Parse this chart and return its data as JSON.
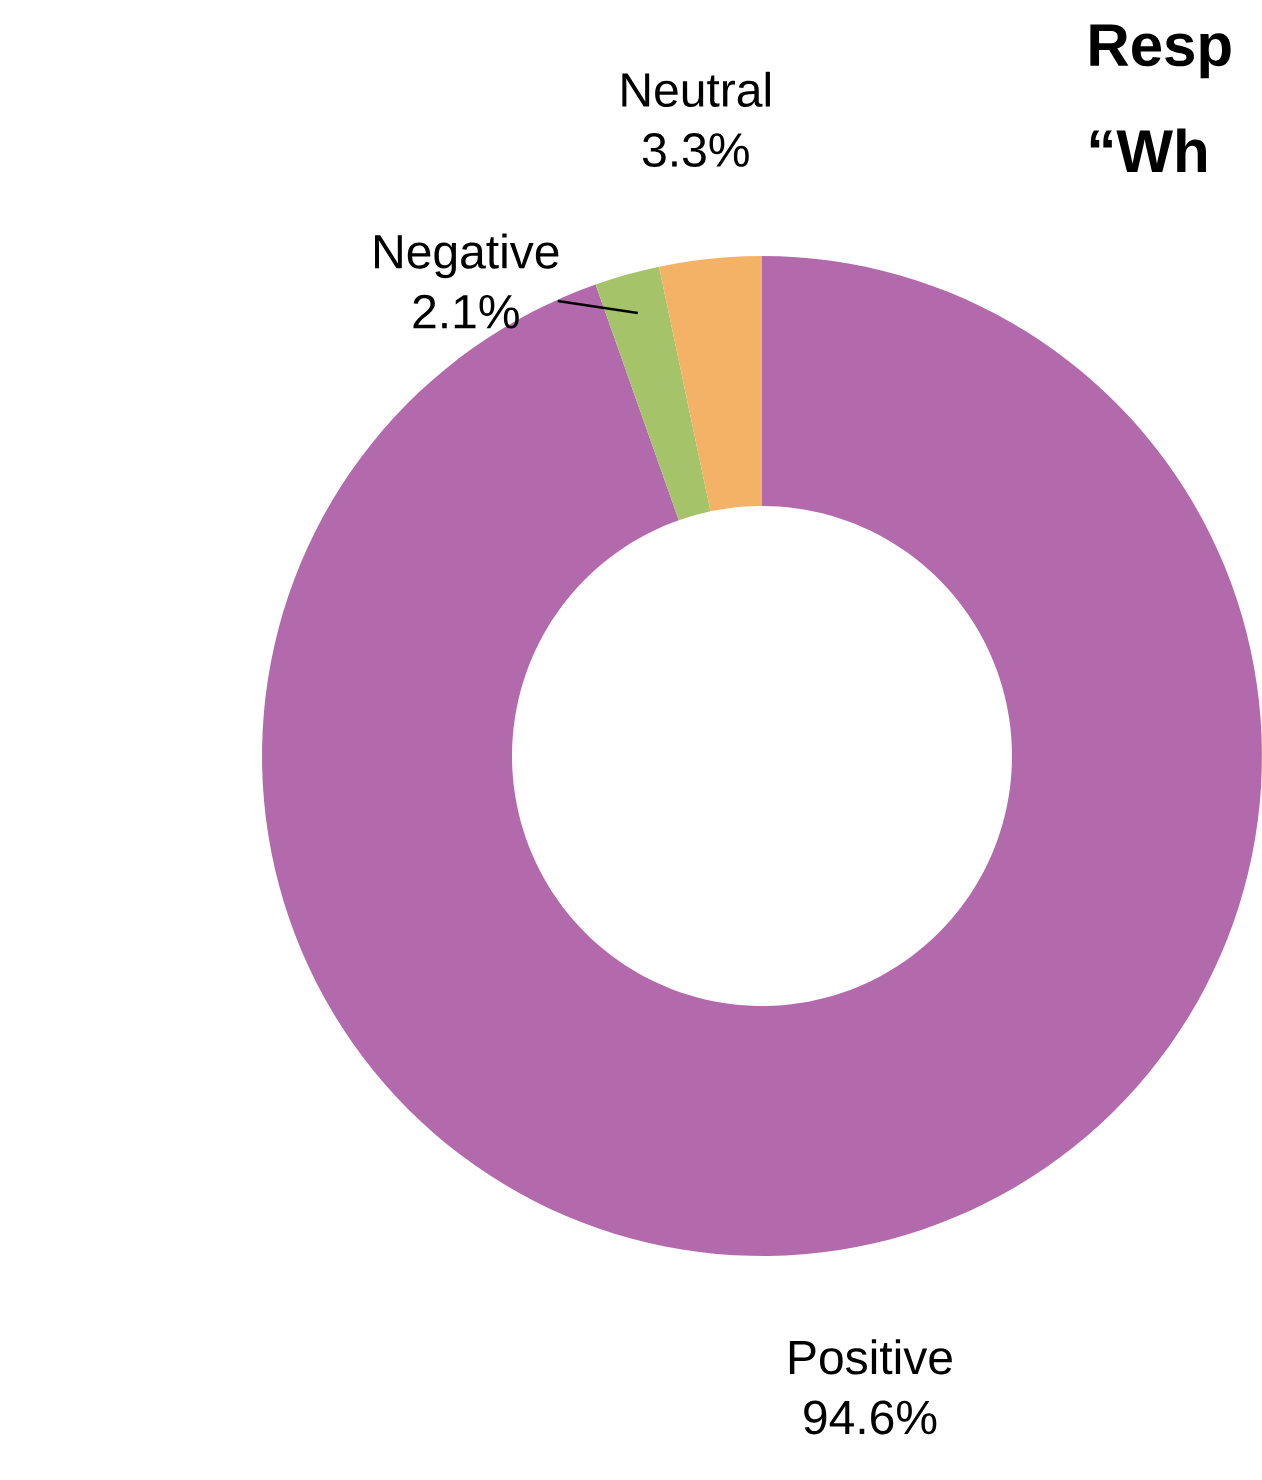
{
  "chart_data": {
    "type": "donut",
    "title": "Resp",
    "subtitle": "“Wh",
    "categories": [
      "Positive",
      "Negative",
      "Neutral"
    ],
    "values": [
      94.6,
      2.1,
      3.3
    ],
    "value_labels": [
      "94.6%",
      "2.1%",
      "3.3%"
    ],
    "colors": [
      "#b36aad",
      "#a5c46a",
      "#f4b266"
    ],
    "legend": false
  }
}
